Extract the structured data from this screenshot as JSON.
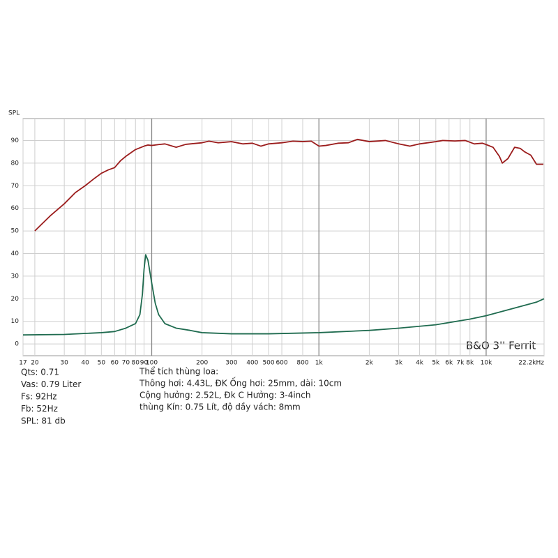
{
  "chart_data": {
    "type": "line",
    "y_label": "SPL",
    "annotation": "B&O 3'' Ferrit",
    "xscale": "log",
    "grid": true,
    "xlim": [
      17,
      22200
    ],
    "ylim": [
      -5.2,
      99.7
    ],
    "yticks": [
      0,
      10,
      20,
      30,
      40,
      50,
      60,
      70,
      80,
      90
    ],
    "xticks": [
      17,
      20,
      30,
      40,
      50,
      60,
      70,
      80,
      90,
      100,
      200,
      300,
      400,
      500,
      600,
      800,
      {
        "value": 1000,
        "label": "1k"
      },
      {
        "value": 2000,
        "label": "2k"
      },
      {
        "value": 3000,
        "label": "3k"
      },
      {
        "value": 4000,
        "label": "4k"
      },
      {
        "value": 5000,
        "label": "5k"
      },
      {
        "value": 6000,
        "label": "6k"
      },
      {
        "value": 7000,
        "label": "7k"
      },
      {
        "value": 8000,
        "label": "8k"
      },
      {
        "value": 10000,
        "label": "10k"
      },
      {
        "value": 22200,
        "label": "22.2kHz"
      }
    ],
    "series": [
      {
        "color": "#9b1c1c",
        "x": [
          20,
          22,
          25,
          30,
          35,
          40,
          45,
          50,
          55,
          60,
          65,
          70,
          80,
          90,
          95,
          100,
          110,
          120,
          140,
          160,
          200,
          220,
          250,
          300,
          350,
          400,
          450,
          500,
          600,
          700,
          800,
          900,
          1000,
          1100,
          1300,
          1500,
          1700,
          2000,
          2500,
          3000,
          3500,
          4000,
          5000,
          5500,
          6500,
          7500,
          8500,
          9500,
          10000,
          11000,
          12000,
          12500,
          13500,
          14800,
          16000,
          17000,
          18500,
          20000,
          22000
        ],
        "values": [
          50,
          53,
          57,
          62,
          67,
          70,
          73,
          75.5,
          77,
          78,
          81,
          83,
          86,
          87.5,
          88,
          87.8,
          88.2,
          88.5,
          87,
          88.3,
          89,
          89.7,
          89,
          89.5,
          88.5,
          88.8,
          87.5,
          88.5,
          89,
          89.7,
          89.5,
          89.7,
          87.5,
          87.8,
          88.8,
          89,
          90.5,
          89.5,
          90,
          88.5,
          87.5,
          88.5,
          89.5,
          90,
          89.8,
          90,
          88.5,
          88.8,
          88.2,
          87,
          83,
          80,
          82,
          87,
          86.5,
          85,
          83.5,
          79.5,
          79.5
        ]
      },
      {
        "color": "#1f6b4f",
        "x": [
          17,
          30,
          50,
          60,
          70,
          80,
          85,
          88,
          90,
          92,
          95,
          100,
          105,
          110,
          120,
          140,
          170,
          200,
          300,
          500,
          1000,
          2000,
          3000,
          5000,
          8000,
          10000,
          15000,
          20000,
          22200
        ],
        "values": [
          4,
          4.2,
          5,
          5.5,
          7,
          9,
          13,
          22,
          33,
          39.5,
          37,
          27,
          18,
          13,
          9,
          7,
          6,
          5,
          4.5,
          4.5,
          5,
          6,
          7,
          8.5,
          11,
          12.5,
          16,
          18.5,
          20
        ]
      }
    ],
    "notes_left": [
      "Qts: 0.71",
      "Vas: 0.79 Liter",
      "Fs: 92Hz",
      "Fb: 52Hz",
      "SPL: 81 db"
    ],
    "notes_right": [
      "Thể tích thùng loa:",
      "Thông hơi: 4.43L, ĐK Ống hơi: 25mm, dài: 10cm",
      "Cộng hưởng: 2.52L, Đk C Hưởng: 3-4inch",
      "thùng Kín: 0.75 Lít, độ dầy vách: 8mm"
    ]
  }
}
